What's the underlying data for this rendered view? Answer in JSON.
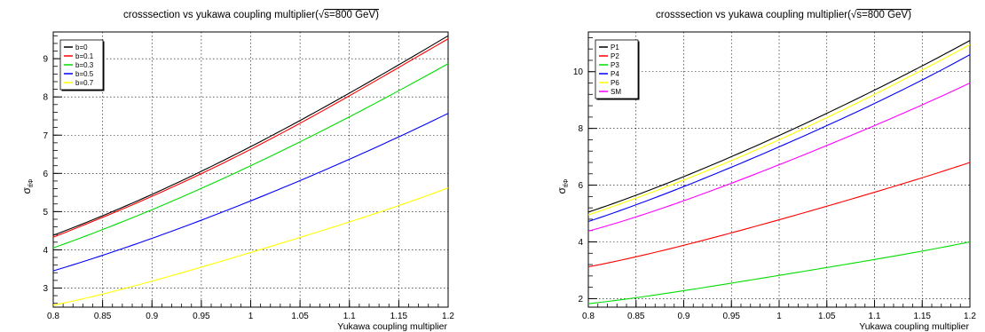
{
  "chart_data": [
    {
      "type": "line",
      "title": "crosssection vs yukawa coupling multiplier(√s=800 GeV)",
      "title_prefix": "crosssection vs yukawa coupling multiplier(",
      "title_sqrt": "√",
      "title_suffix": "s=800 GeV)",
      "xlabel": "Yukawa coupling multiplier",
      "ylabel_main": "σ",
      "ylabel_sub": "tt̄Φ",
      "xlim": [
        0.8,
        1.2
      ],
      "ylim": [
        2.5,
        9.7
      ],
      "xticks": [
        "0.8",
        "0.85",
        "0.9",
        "0.95",
        "1",
        "1.05",
        "1.1",
        "1.15",
        "1.2"
      ],
      "yticks": [
        3,
        4,
        5,
        6,
        7,
        8,
        9
      ],
      "grid": true,
      "legend_position": "top-left",
      "x": [
        0.8,
        0.9,
        1.0,
        1.1,
        1.2
      ],
      "series": [
        {
          "name": "b=0",
          "color": "#000000",
          "values": [
            4.38,
            5.45,
            6.7,
            8.1,
            9.6
          ]
        },
        {
          "name": "b=0.1",
          "color": "#ff0000",
          "values": [
            4.33,
            5.4,
            6.63,
            8.03,
            9.52
          ]
        },
        {
          "name": "b=0.3",
          "color": "#00dd00",
          "values": [
            4.05,
            5.05,
            6.2,
            7.48,
            8.87
          ]
        },
        {
          "name": "b=0.5",
          "color": "#0000ff",
          "values": [
            3.45,
            4.3,
            5.28,
            6.37,
            7.57
          ]
        },
        {
          "name": "b=0.7",
          "color": "#ffff00",
          "values": [
            2.55,
            3.18,
            3.93,
            4.73,
            5.62
          ]
        }
      ]
    },
    {
      "type": "line",
      "title": "crosssection vs yukawa coupling multiplier(√s=800 GeV)",
      "title_prefix": "crosssection vs yukawa coupling multiplier(",
      "title_sqrt": "√",
      "title_suffix": "s=800 GeV)",
      "xlabel": "Yukawa coupling multiplier",
      "ylabel_main": "σ",
      "ylabel_sub": "tt̄Φ",
      "xlim": [
        0.8,
        1.2
      ],
      "ylim": [
        1.7,
        11.4
      ],
      "xticks": [
        "0.8",
        "0.85",
        "0.9",
        "0.95",
        "1",
        "1.05",
        "1.1",
        "1.15",
        "1.2"
      ],
      "yticks": [
        2,
        4,
        6,
        8,
        10
      ],
      "grid": true,
      "legend_position": "top-left",
      "x": [
        0.8,
        0.9,
        1.0,
        1.1,
        1.2
      ],
      "series": [
        {
          "name": "P1",
          "color": "#000000",
          "values": [
            5.05,
            6.3,
            7.75,
            9.35,
            11.1
          ]
        },
        {
          "name": "P2",
          "color": "#ff0000",
          "values": [
            3.12,
            3.88,
            4.78,
            5.75,
            6.8
          ]
        },
        {
          "name": "P3",
          "color": "#00dd00",
          "values": [
            1.82,
            2.28,
            2.82,
            3.38,
            4.0
          ]
        },
        {
          "name": "P4",
          "color": "#0000ff",
          "values": [
            4.72,
            5.95,
            7.35,
            8.88,
            10.6
          ]
        },
        {
          "name": "P6",
          "color": "#ffff00",
          "values": [
            4.95,
            6.18,
            7.6,
            9.2,
            10.95
          ]
        },
        {
          "name": "SM",
          "color": "#ff00ff",
          "values": [
            4.38,
            5.45,
            6.72,
            8.1,
            9.6
          ]
        }
      ]
    }
  ]
}
